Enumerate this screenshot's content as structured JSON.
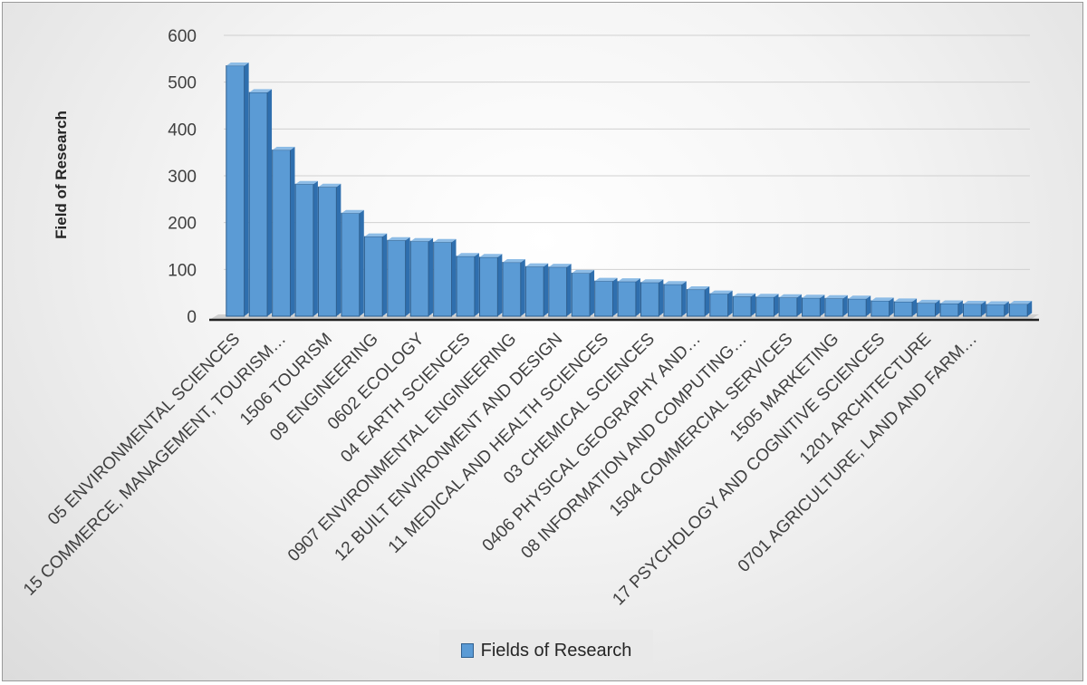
{
  "chart_data": {
    "type": "bar",
    "ylabel": "Field of Research",
    "ylim": [
      0,
      600
    ],
    "yticks": [
      0,
      100,
      200,
      300,
      400,
      500,
      600
    ],
    "legend": {
      "position": "bottom",
      "entries": [
        "Fields of Research"
      ]
    },
    "series": [
      {
        "name": "Fields of Research",
        "color": "#5b9bd5",
        "values": [
          535,
          478,
          355,
          282,
          276,
          220,
          170,
          162,
          160,
          158,
          128,
          126,
          115,
          106,
          105,
          92,
          75,
          74,
          72,
          68,
          57,
          48,
          42,
          41,
          40,
          39,
          38,
          37,
          33,
          31,
          28,
          27,
          26,
          25,
          26
        ]
      }
    ],
    "categories": [
      "05 ENVIRONMENTAL SCIENCES",
      "",
      "15 COMMERCE, MANAGEMENT, TOURISM…",
      "",
      "1506 TOURISM",
      "",
      "09 ENGINEERING",
      "",
      "0602 ECOLOGY",
      "",
      "04 EARTH SCIENCES",
      "",
      "0907 ENVIRONMENTAL ENGINEERING",
      "",
      "12 BUILT ENVIRONMENT AND DESIGN",
      "",
      "11 MEDICAL AND HEALTH SCIENCES",
      "",
      "03 CHEMICAL SCIENCES",
      "",
      "0406 PHYSICAL GEOGRAPHY AND…",
      "",
      "08 INFORMATION AND COMPUTING…",
      "",
      "1504 COMMERCIAL SERVICES",
      "",
      "1505 MARKETING",
      "",
      "17 PSYCHOLOGY AND COGNITIVE SCIENCES",
      "",
      "1201 ARCHITECTURE",
      "",
      "0701 AGRICULTURE, LAND AND FARM…",
      "",
      ""
    ]
  }
}
